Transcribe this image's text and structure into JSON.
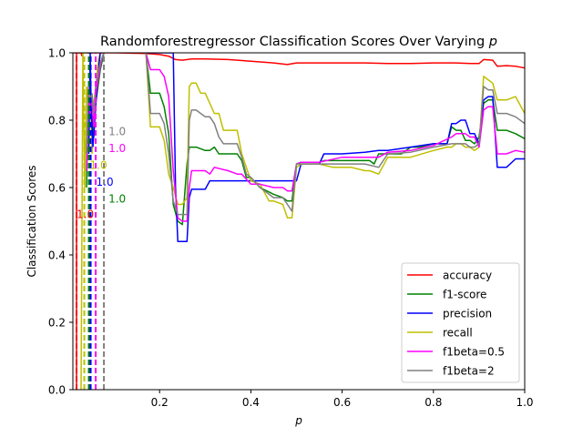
{
  "chart_data": {
    "type": "line",
    "title_prefix": "Randomforestregressor Classification Scores Over Varying ",
    "title_var": "p",
    "xlabel": "p",
    "ylabel": "Classification Scores",
    "xlim": [
      0.01,
      1.0
    ],
    "ylim": [
      0.0,
      1.0
    ],
    "xticks": [
      "0.2",
      "0.4",
      "0.6",
      "0.8",
      "1.0"
    ],
    "xtick_values": [
      0.2,
      0.4,
      0.6,
      0.8,
      1.0
    ],
    "yticks": [
      "0.0",
      "0.2",
      "0.4",
      "0.6",
      "0.8",
      "1.0"
    ],
    "ytick_values": [
      0.0,
      0.2,
      0.4,
      0.6,
      0.8,
      1.0
    ],
    "grid": false,
    "legend_position": "lower-right",
    "series": [
      {
        "name": "accuracy",
        "color": "#ff0000",
        "x": [
          0.01,
          0.05,
          0.1,
          0.17,
          0.2,
          0.22,
          0.235,
          0.25,
          0.27,
          0.3,
          0.35,
          0.4,
          0.45,
          0.48,
          0.5,
          0.55,
          0.6,
          0.65,
          0.7,
          0.75,
          0.8,
          0.85,
          0.88,
          0.9,
          0.91,
          0.93,
          0.94,
          0.96,
          0.98,
          1.0
        ],
        "y": [
          1.0,
          1.0,
          1.0,
          0.998,
          0.995,
          0.99,
          0.98,
          0.978,
          0.982,
          0.982,
          0.98,
          0.975,
          0.97,
          0.965,
          0.97,
          0.97,
          0.97,
          0.97,
          0.968,
          0.968,
          0.97,
          0.97,
          0.968,
          0.968,
          0.98,
          0.978,
          0.96,
          0.962,
          0.96,
          0.955
        ]
      },
      {
        "name": "f1-score",
        "color": "#008000",
        "x": [
          0.17,
          0.18,
          0.2,
          0.21,
          0.22,
          0.23,
          0.24,
          0.25,
          0.26,
          0.265,
          0.27,
          0.28,
          0.3,
          0.31,
          0.32,
          0.33,
          0.34,
          0.35,
          0.37,
          0.38,
          0.39,
          0.4,
          0.42,
          0.45,
          0.47,
          0.48,
          0.49,
          0.5,
          0.51,
          0.55,
          0.56,
          0.6,
          0.62,
          0.65,
          0.66,
          0.67,
          0.68,
          0.7,
          0.73,
          0.75,
          0.77,
          0.8,
          0.83,
          0.84,
          0.85,
          0.86,
          0.87,
          0.88,
          0.89,
          0.9,
          0.91,
          0.92,
          0.93,
          0.94,
          0.96,
          0.98,
          1.0
        ],
        "y": [
          1.0,
          0.88,
          0.88,
          0.84,
          0.76,
          0.55,
          0.5,
          0.49,
          0.67,
          0.72,
          0.72,
          0.72,
          0.71,
          0.71,
          0.72,
          0.7,
          0.7,
          0.7,
          0.7,
          0.68,
          0.63,
          0.63,
          0.6,
          0.58,
          0.57,
          0.56,
          0.56,
          0.67,
          0.675,
          0.675,
          0.68,
          0.68,
          0.68,
          0.68,
          0.68,
          0.67,
          0.7,
          0.7,
          0.7,
          0.72,
          0.72,
          0.73,
          0.73,
          0.78,
          0.77,
          0.77,
          0.74,
          0.74,
          0.73,
          0.75,
          0.85,
          0.86,
          0.86,
          0.77,
          0.77,
          0.76,
          0.745
        ]
      },
      {
        "name": "precision",
        "color": "#0000ff",
        "x": [
          0.17,
          0.18,
          0.2,
          0.21,
          0.22,
          0.23,
          0.235,
          0.24,
          0.26,
          0.265,
          0.27,
          0.3,
          0.31,
          0.32,
          0.35,
          0.38,
          0.4,
          0.45,
          0.47,
          0.48,
          0.5,
          0.51,
          0.55,
          0.56,
          0.6,
          0.65,
          0.68,
          0.7,
          0.75,
          0.8,
          0.83,
          0.84,
          0.85,
          0.86,
          0.87,
          0.88,
          0.89,
          0.9,
          0.91,
          0.92,
          0.93,
          0.94,
          0.95,
          0.96,
          0.98,
          1.0
        ],
        "y": [
          1.0,
          1.0,
          1.0,
          1.0,
          1.0,
          1.0,
          0.6,
          0.44,
          0.44,
          0.57,
          0.595,
          0.595,
          0.62,
          0.62,
          0.62,
          0.62,
          0.62,
          0.62,
          0.62,
          0.62,
          0.62,
          0.67,
          0.67,
          0.7,
          0.7,
          0.705,
          0.71,
          0.71,
          0.72,
          0.73,
          0.73,
          0.79,
          0.79,
          0.8,
          0.8,
          0.76,
          0.76,
          0.73,
          0.86,
          0.87,
          0.87,
          0.66,
          0.66,
          0.66,
          0.685,
          0.685
        ]
      },
      {
        "name": "recall",
        "color": "#bfbf00",
        "x": [
          0.17,
          0.18,
          0.2,
          0.21,
          0.22,
          0.23,
          0.24,
          0.25,
          0.26,
          0.265,
          0.27,
          0.28,
          0.29,
          0.3,
          0.31,
          0.32,
          0.33,
          0.34,
          0.35,
          0.37,
          0.38,
          0.4,
          0.42,
          0.44,
          0.45,
          0.47,
          0.48,
          0.49,
          0.5,
          0.51,
          0.55,
          0.58,
          0.6,
          0.62,
          0.65,
          0.66,
          0.68,
          0.7,
          0.75,
          0.8,
          0.83,
          0.84,
          0.85,
          0.86,
          0.87,
          0.88,
          0.89,
          0.9,
          0.91,
          0.92,
          0.93,
          0.94,
          0.96,
          0.98,
          1.0
        ],
        "y": [
          1.0,
          0.78,
          0.78,
          0.74,
          0.64,
          0.6,
          0.55,
          0.55,
          0.57,
          0.9,
          0.91,
          0.91,
          0.88,
          0.88,
          0.85,
          0.82,
          0.82,
          0.77,
          0.77,
          0.77,
          0.7,
          0.62,
          0.61,
          0.56,
          0.56,
          0.55,
          0.51,
          0.51,
          0.66,
          0.67,
          0.67,
          0.66,
          0.66,
          0.66,
          0.65,
          0.65,
          0.64,
          0.69,
          0.69,
          0.71,
          0.72,
          0.72,
          0.73,
          0.73,
          0.72,
          0.72,
          0.71,
          0.72,
          0.93,
          0.92,
          0.91,
          0.86,
          0.86,
          0.87,
          0.82
        ]
      },
      {
        "name": "f1beta=0.5",
        "color": "#ff00ff",
        "x": [
          0.17,
          0.18,
          0.2,
          0.21,
          0.22,
          0.23,
          0.24,
          0.25,
          0.26,
          0.265,
          0.27,
          0.3,
          0.31,
          0.32,
          0.35,
          0.37,
          0.38,
          0.4,
          0.42,
          0.45,
          0.47,
          0.48,
          0.49,
          0.5,
          0.51,
          0.55,
          0.6,
          0.65,
          0.68,
          0.7,
          0.75,
          0.8,
          0.84,
          0.85,
          0.86,
          0.87,
          0.88,
          0.89,
          0.9,
          0.91,
          0.92,
          0.93,
          0.94,
          0.96,
          0.98,
          1.0
        ],
        "y": [
          1.0,
          0.95,
          0.95,
          0.93,
          0.87,
          0.65,
          0.51,
          0.5,
          0.5,
          0.6,
          0.65,
          0.65,
          0.64,
          0.66,
          0.65,
          0.64,
          0.64,
          0.61,
          0.61,
          0.6,
          0.6,
          0.59,
          0.59,
          0.67,
          0.675,
          0.675,
          0.69,
          0.69,
          0.69,
          0.705,
          0.71,
          0.725,
          0.75,
          0.76,
          0.76,
          0.76,
          0.75,
          0.75,
          0.72,
          0.83,
          0.84,
          0.84,
          0.7,
          0.7,
          0.71,
          0.705
        ]
      },
      {
        "name": "f1beta=2",
        "color": "#808080",
        "x": [
          0.17,
          0.18,
          0.2,
          0.21,
          0.22,
          0.23,
          0.24,
          0.25,
          0.26,
          0.265,
          0.27,
          0.28,
          0.3,
          0.31,
          0.32,
          0.33,
          0.34,
          0.35,
          0.37,
          0.38,
          0.39,
          0.4,
          0.42,
          0.45,
          0.47,
          0.48,
          0.49,
          0.5,
          0.51,
          0.55,
          0.6,
          0.62,
          0.65,
          0.68,
          0.7,
          0.75,
          0.8,
          0.84,
          0.85,
          0.86,
          0.87,
          0.88,
          0.89,
          0.9,
          0.91,
          0.92,
          0.93,
          0.94,
          0.96,
          0.98,
          1.0
        ],
        "y": [
          1.0,
          0.82,
          0.82,
          0.79,
          0.7,
          0.56,
          0.52,
          0.52,
          0.52,
          0.8,
          0.83,
          0.83,
          0.81,
          0.81,
          0.79,
          0.75,
          0.73,
          0.73,
          0.73,
          0.69,
          0.64,
          0.63,
          0.6,
          0.57,
          0.57,
          0.55,
          0.53,
          0.67,
          0.67,
          0.67,
          0.67,
          0.67,
          0.67,
          0.66,
          0.7,
          0.705,
          0.72,
          0.73,
          0.73,
          0.73,
          0.73,
          0.72,
          0.72,
          0.73,
          0.9,
          0.89,
          0.89,
          0.82,
          0.82,
          0.81,
          0.79
        ]
      }
    ],
    "early_spikes": [
      {
        "color": "#ff0000",
        "x": [
          0.018,
          0.018,
          0.023,
          0.028,
          0.03
        ],
        "y": [
          0.0,
          1.0,
          1.0,
          1.0,
          0.99
        ]
      },
      {
        "color": "#bfbf00",
        "x": [
          0.028,
          0.032,
          0.036,
          0.04,
          0.044,
          0.048,
          0.052,
          0.056,
          0.06,
          0.066,
          0.07,
          0.074,
          0.078
        ],
        "y": [
          0.0,
          1.0,
          0.6,
          0.9,
          0.85,
          0.88,
          0.7,
          0.85,
          0.9,
          0.98,
          1.0,
          1.0,
          1.0
        ]
      },
      {
        "color": "#008000",
        "x": [
          0.04,
          0.044,
          0.048,
          0.052,
          0.056,
          0.06,
          0.065,
          0.07,
          0.075,
          0.078
        ],
        "y": [
          0.6,
          0.88,
          0.85,
          0.8,
          0.75,
          0.85,
          0.9,
          0.95,
          0.98,
          1.0
        ]
      },
      {
        "color": "#0000ff",
        "x": [
          0.045,
          0.048,
          0.05,
          0.054,
          0.058,
          0.062,
          0.066,
          0.07,
          0.075,
          0.078
        ],
        "y": [
          0.7,
          1.0,
          0.85,
          0.72,
          0.8,
          0.88,
          0.95,
          1.0,
          1.0,
          1.0
        ]
      },
      {
        "color": "#ff00ff",
        "x": [
          0.04,
          0.044,
          0.048,
          0.052,
          0.056,
          0.06,
          0.065,
          0.07,
          0.075,
          0.078
        ],
        "y": [
          0.65,
          0.88,
          0.82,
          0.86,
          0.78,
          0.88,
          0.92,
          0.96,
          0.99,
          1.0
        ]
      },
      {
        "color": "#808080",
        "x": [
          0.04,
          0.044,
          0.048,
          0.052,
          0.056,
          0.06,
          0.065,
          0.07,
          0.075,
          0.078
        ],
        "y": [
          0.7,
          0.9,
          0.86,
          0.88,
          0.82,
          0.9,
          0.94,
          0.97,
          0.99,
          1.0
        ]
      }
    ],
    "vlines": [
      {
        "color": "#ff0000",
        "x": 0.018
      },
      {
        "color": "#bfbf00",
        "x": 0.035
      },
      {
        "color": "#008000",
        "x": 0.045
      },
      {
        "color": "#0000ff",
        "x": 0.049
      },
      {
        "color": "#ff00ff",
        "x": 0.06
      },
      {
        "color": "#808080",
        "x": 0.078
      }
    ],
    "annotations": [
      {
        "text": "1.0",
        "color": "#ff0000",
        "x": 0.018,
        "y": 0.51
      },
      {
        "text": "1.0",
        "color": "#bfbf00",
        "x": 0.047,
        "y": 0.655
      },
      {
        "text": "1.0",
        "color": "#0000ff",
        "x": 0.061,
        "y": 0.605
      },
      {
        "text": "1.0",
        "color": "#008000",
        "x": 0.088,
        "y": 0.555
      },
      {
        "text": "1.0",
        "color": "#ff00ff",
        "x": 0.088,
        "y": 0.705
      },
      {
        "text": "1.0",
        "color": "#808080",
        "x": 0.088,
        "y": 0.755
      }
    ]
  }
}
